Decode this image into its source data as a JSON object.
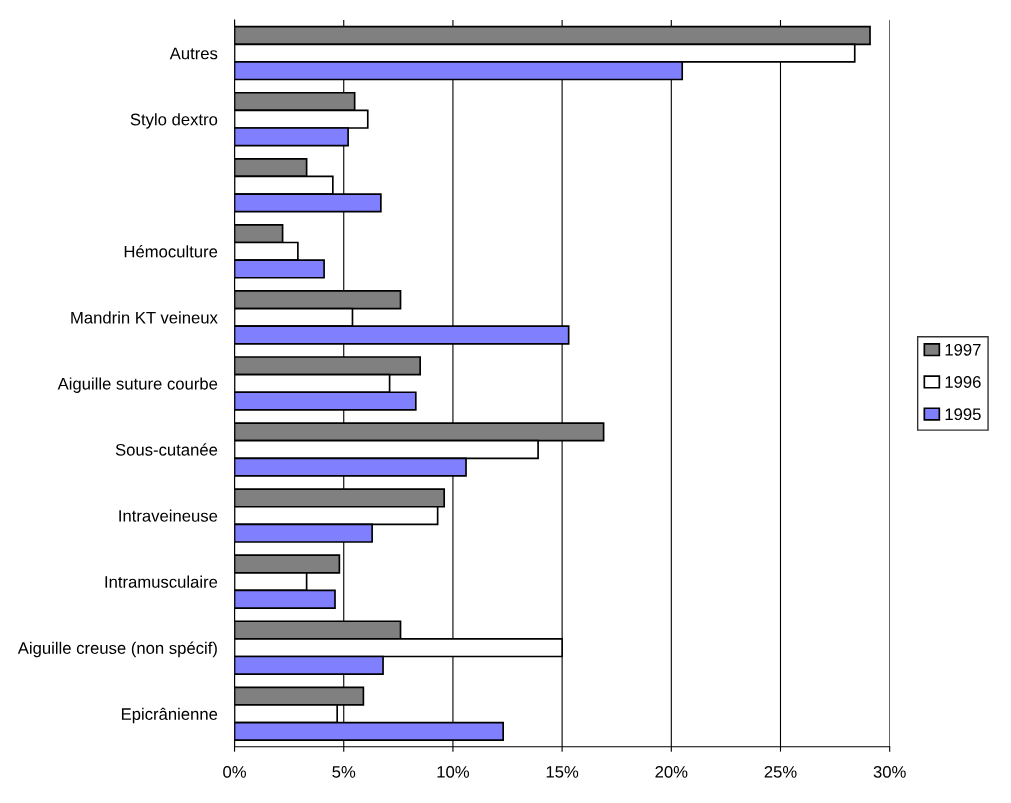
{
  "chart_data": {
    "type": "bar",
    "orientation": "horizontal",
    "categories": [
      "Autres",
      "Stylo dextro",
      null,
      "Hémoculture",
      "Mandrin KT veineux",
      "Aiguille suture courbe",
      "Sous-cutanée",
      "Intraveineuse",
      "Intramusculaire",
      "Aiguille creuse (non spécif)",
      "Epicrânienne"
    ],
    "series": [
      {
        "name": "1997",
        "color": "#808080",
        "values": [
          29.1,
          5.5,
          3.3,
          2.2,
          7.6,
          8.5,
          16.9,
          9.6,
          4.8,
          7.6,
          5.9
        ]
      },
      {
        "name": "1996",
        "color": "#ffffff",
        "values": [
          28.4,
          6.1,
          4.5,
          2.9,
          5.4,
          7.1,
          13.9,
          9.3,
          3.3,
          15.0,
          4.7
        ]
      },
      {
        "name": "1995",
        "color": "#8080ff",
        "values": [
          20.5,
          5.2,
          6.7,
          4.1,
          15.3,
          8.3,
          10.6,
          6.3,
          4.6,
          6.8,
          12.3
        ]
      }
    ],
    "xlim": [
      0,
      30
    ],
    "xticks": [
      {
        "value": 0,
        "label": "0%"
      },
      {
        "value": 5,
        "label": "5%"
      },
      {
        "value": 10,
        "label": "10%"
      },
      {
        "value": 15,
        "label": "15%"
      },
      {
        "value": 20,
        "label": "20%"
      },
      {
        "value": 25,
        "label": "25%"
      },
      {
        "value": 30,
        "label": "30%"
      }
    ],
    "grid": "x",
    "legend": "right"
  }
}
